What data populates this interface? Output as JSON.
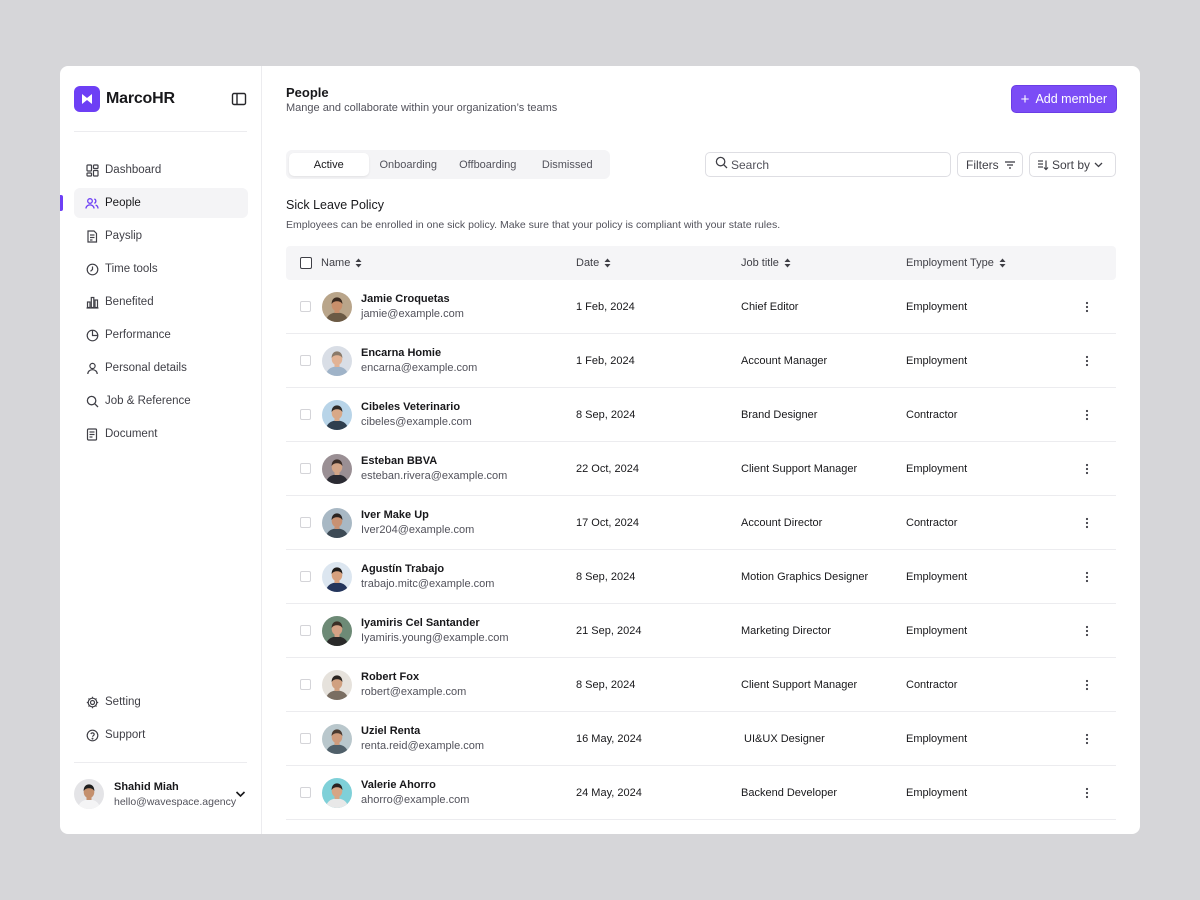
{
  "brand": {
    "name": "MarcoHR",
    "accent": "#6d3ff5"
  },
  "sidebar": {
    "items": [
      {
        "label": "Dashboard",
        "icon": "dashboard-icon"
      },
      {
        "label": "People",
        "icon": "people-icon",
        "active": true
      },
      {
        "label": "Payslip",
        "icon": "payslip-icon"
      },
      {
        "label": "Time tools",
        "icon": "clock-icon"
      },
      {
        "label": "Benefited",
        "icon": "bar-chart-icon"
      },
      {
        "label": "Performance",
        "icon": "pie-chart-icon"
      },
      {
        "label": "Personal details",
        "icon": "user-icon"
      },
      {
        "label": "Job & Reference",
        "icon": "search-icon"
      },
      {
        "label": "Document",
        "icon": "document-icon"
      }
    ],
    "bottom_items": [
      {
        "label": "Setting",
        "icon": "gear-icon"
      },
      {
        "label": "Support",
        "icon": "help-icon"
      }
    ],
    "user": {
      "name": "Shahid Miah",
      "email": "hello@wavespace.agency"
    }
  },
  "header": {
    "title": "People",
    "subtitle": "Mange and collaborate within your organization’s teams",
    "add_label": "Add member"
  },
  "tabs": [
    {
      "label": "Active",
      "active": true
    },
    {
      "label": "Onboarding"
    },
    {
      "label": "Offboarding"
    },
    {
      "label": "Dismissed"
    }
  ],
  "toolbar": {
    "search_placeholder": "Search",
    "filters_label": "Filters",
    "sort_label": "Sort by"
  },
  "policy": {
    "title": "Sick Leave Policy",
    "description": "Employees can be enrolled in one sick policy. Make sure that your policy is compliant with your state rules."
  },
  "table": {
    "columns": [
      "Name",
      "Date",
      "Job title",
      "Employment Type"
    ],
    "rows": [
      {
        "name": "Jamie Croquetas",
        "email": "jamie@example.com",
        "date": "1 Feb, 2024",
        "job": "Chief Editor",
        "type": "Employment"
      },
      {
        "name": "Encarna Homie",
        "email": "encarna@example.com",
        "date": "1 Feb, 2024",
        "job": "Account Manager",
        "type": "Employment"
      },
      {
        "name": "Cibeles Veterinario",
        "email": "cibeles@example.com",
        "date": "8 Sep, 2024",
        "job": "Brand Designer",
        "type": "Contractor"
      },
      {
        "name": "Esteban BBVA",
        "email": "esteban.rivera@example.com",
        "date": "22 Oct, 2024",
        "job": "Client Support Manager",
        "type": "Employment"
      },
      {
        "name": "Iver Make Up",
        "email": "Iver204@example.com",
        "date": "17 Oct, 2024",
        "job": "Account Director",
        "type": "Contractor"
      },
      {
        "name": "Agustín Trabajo",
        "email": "trabajo.mitc@example.com",
        "date": "8 Sep, 2024",
        "job": "Motion Graphics Designer",
        "type": "Employment"
      },
      {
        "name": "Iyamiris Cel Santander",
        "email": "Iyamiris.young@example.com",
        "date": "21 Sep, 2024",
        "job": "Marketing Director",
        "type": "Employment"
      },
      {
        "name": "Robert Fox",
        "email": "robert@example.com",
        "date": "8 Sep, 2024",
        "job": "Client Support Manager",
        "type": "Contractor"
      },
      {
        "name": "Uziel Renta",
        "email": "renta.reid@example.com",
        "date": "16 May, 2024",
        "job": " UI&UX Designer",
        "type": "Employment"
      },
      {
        "name": "Valerie Ahorro",
        "email": "ahorro@example.com",
        "date": "24 May, 2024",
        "job": "Backend Developer",
        "type": "Employment"
      }
    ]
  },
  "avatar_colors": [
    {
      "bg": "#b9a58a",
      "skin": "#c98f6b",
      "hair": "#3b2a1f",
      "shirt": "#6b5a45"
    },
    {
      "bg": "#d9dee6",
      "skin": "#e2b395",
      "hair": "#8a7a6a",
      "shirt": "#9fb3c8"
    },
    {
      "bg": "#b8d4e8",
      "skin": "#d8a888",
      "hair": "#2e2a28",
      "shirt": "#2f3e4e"
    },
    {
      "bg": "#9a8f94",
      "skin": "#d3a587",
      "hair": "#3a2c26",
      "shirt": "#2b2b33"
    },
    {
      "bg": "#a8b8c4",
      "skin": "#c89172",
      "hair": "#2a2320",
      "shirt": "#3d4a55"
    },
    {
      "bg": "#dce6f0",
      "skin": "#d6a07e",
      "hair": "#1f1b19",
      "shirt": "#24355c"
    },
    {
      "bg": "#6d8a76",
      "skin": "#d4a285",
      "hair": "#3b2e25",
      "shirt": "#2a2a2a"
    },
    {
      "bg": "#e6e2dc",
      "skin": "#d0a080",
      "hair": "#2a2420",
      "shirt": "#7a6e62"
    },
    {
      "bg": "#b9c7cc",
      "skin": "#cf9c7d",
      "hair": "#4a3a30",
      "shirt": "#50606a"
    },
    {
      "bg": "#7fd0d8",
      "skin": "#d6a585",
      "hair": "#2a2220",
      "shirt": "#e8e8e8"
    }
  ],
  "user_avatar_colors": {
    "bg": "#e4e4e7",
    "skin": "#c4906e",
    "hair": "#1e1e1e",
    "shirt": "#f4f4f5"
  }
}
